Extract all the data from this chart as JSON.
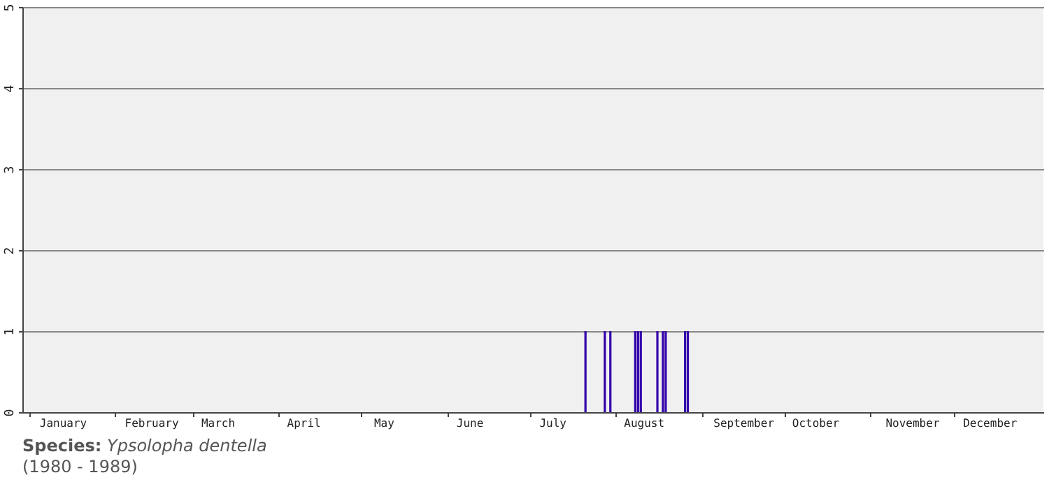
{
  "chart_data": {
    "type": "bar",
    "x": [
      "--07-21",
      "--07-28",
      "--07-30",
      "--08-08",
      "--08-09",
      "--08-10",
      "--08-16",
      "--08-18",
      "--08-19",
      "--08-26",
      "--08-27"
    ],
    "values": [
      1,
      1,
      1,
      1,
      1,
      1,
      1,
      1,
      1,
      1,
      1
    ],
    "color": "#3300aa",
    "xlim": [
      "--01-01",
      "--12-31"
    ],
    "xticks": [
      {
        "value": "--01-01",
        "label": null
      },
      {
        "value": "--01-13",
        "label": "January"
      },
      {
        "value": "--02-01",
        "label": null
      },
      {
        "value": "--02-14",
        "label": "February"
      },
      {
        "value": "--03-01",
        "label": null
      },
      {
        "value": "--03-10",
        "label": "March"
      },
      {
        "value": "--04-01",
        "label": null
      },
      {
        "value": "--04-10",
        "label": "April"
      },
      {
        "value": "--05-01",
        "label": null
      },
      {
        "value": "--05-09",
        "label": "May"
      },
      {
        "value": "--06-01",
        "label": null
      },
      {
        "value": "--06-09",
        "label": "June"
      },
      {
        "value": "--07-01",
        "label": null
      },
      {
        "value": "--07-09",
        "label": "July"
      },
      {
        "value": "--08-01",
        "label": null
      },
      {
        "value": "--08-11",
        "label": "August"
      },
      {
        "value": "--09-01",
        "label": null
      },
      {
        "value": "--09-16",
        "label": "September"
      },
      {
        "value": "--10-01",
        "label": null
      },
      {
        "value": "--10-12",
        "label": "October"
      },
      {
        "value": "--11-01",
        "label": null
      },
      {
        "value": "--11-16",
        "label": "November"
      },
      {
        "value": "--12-01",
        "label": null
      },
      {
        "value": "--12-14",
        "label": "December"
      }
    ],
    "ylim": [
      0,
      5
    ],
    "yticks": [
      0,
      1,
      2,
      3,
      4,
      5
    ],
    "grid": "y",
    "annotations": [
      "Species: Ypsolopha dentella",
      "(1980 - 1989)"
    ]
  }
}
